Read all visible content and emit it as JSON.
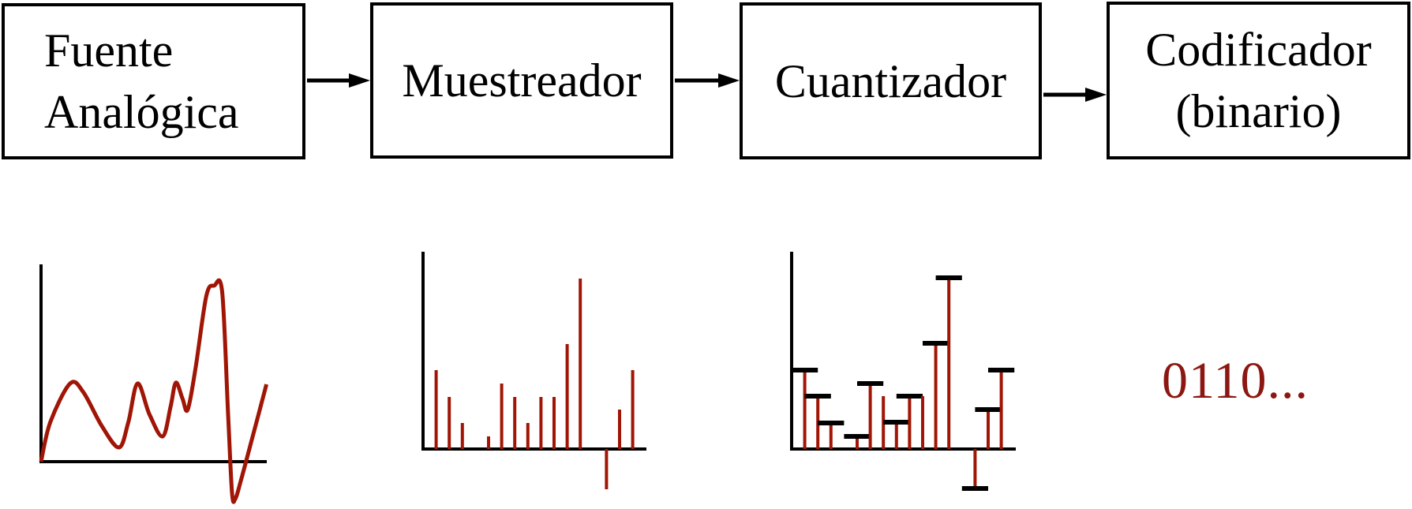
{
  "colors": {
    "background": "#ffffff",
    "line_black": "#000000",
    "box_border": "#000000",
    "box_text": "#000000",
    "signal_red": "#a01505",
    "binary_text_red": "#8c1712"
  },
  "blocks": [
    {
      "name": "fuente-analogica",
      "lines": [
        "Fuente",
        "Analógica"
      ]
    },
    {
      "name": "muestreador",
      "lines": [
        "Muestreador"
      ]
    },
    {
      "name": "cuantizador",
      "lines": [
        "Cuantizador"
      ]
    },
    {
      "name": "codificador-binario",
      "lines": [
        "Codificador",
        "(binario)"
      ]
    }
  ],
  "connectors": [
    {
      "from": "fuente-analogica",
      "to": "muestreador"
    },
    {
      "from": "muestreador",
      "to": "cuantizador"
    },
    {
      "from": "cuantizador",
      "to": "codificador-binario"
    }
  ],
  "binary_output": "0110...",
  "chart_data": [
    {
      "type": "line",
      "name": "analog-signal",
      "legend": "none",
      "grid": false,
      "ticks": "none",
      "points_t_v": [
        [
          0,
          0
        ],
        [
          0.7,
          50
        ],
        [
          2.2,
          99
        ],
        [
          3.2,
          88
        ],
        [
          4.6,
          45
        ],
        [
          5.9,
          18
        ],
        [
          6.6,
          50
        ],
        [
          7.3,
          99
        ],
        [
          8.2,
          60
        ],
        [
          9.2,
          32
        ],
        [
          9.8,
          70
        ],
        [
          10.2,
          100
        ],
        [
          10.7,
          80
        ],
        [
          11.1,
          66
        ],
        [
          11.7,
          120
        ],
        [
          12.5,
          210
        ],
        [
          13.1,
          223
        ],
        [
          13.7,
          215
        ],
        [
          14.15,
          60
        ],
        [
          14.45,
          -40
        ],
        [
          14.7,
          -47
        ],
        [
          15.1,
          -25
        ],
        [
          15.9,
          25
        ],
        [
          17.05,
          98
        ]
      ]
    },
    {
      "type": "stem",
      "name": "sampled-signal",
      "grid": false,
      "ticks": "none",
      "sample_index": [
        1,
        2,
        3,
        4,
        5,
        6,
        7,
        8,
        9,
        10,
        11,
        12,
        13,
        14,
        15,
        16
      ],
      "values": [
        100,
        66,
        33,
        0,
        16,
        83,
        66,
        33,
        66,
        66,
        133,
        216,
        0,
        -51,
        50,
        100
      ]
    },
    {
      "type": "stem-quantized",
      "name": "quantized-signal",
      "grid": false,
      "ticks": "none",
      "sample_index": [
        1,
        2,
        3,
        4,
        5,
        6,
        7,
        8,
        9,
        10,
        11,
        12,
        13,
        14,
        15,
        16
      ],
      "values": [
        100,
        67,
        33,
        0,
        16,
        83,
        67,
        34,
        67,
        67,
        134,
        217,
        0,
        -47,
        50,
        100
      ],
      "level_cap_shown": [
        true,
        true,
        true,
        false,
        true,
        true,
        false,
        true,
        true,
        false,
        true,
        true,
        false,
        true,
        true,
        true
      ]
    }
  ]
}
